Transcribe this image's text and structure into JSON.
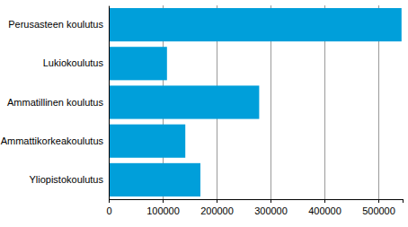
{
  "chart_data": {
    "type": "bar",
    "orientation": "horizontal",
    "categories": [
      "Perusasteen koulutus",
      "Lukiokoulutus",
      "Ammatillinen koulutus",
      "Ammattikorkeakoulutus",
      "Yliopistokoulutus"
    ],
    "values": [
      543000,
      108000,
      279000,
      142000,
      170000
    ],
    "color": "#009fda",
    "xlim": [
      0,
      545000
    ],
    "xticks": [
      0,
      100000,
      200000,
      300000,
      400000,
      500000
    ],
    "grid": true
  }
}
